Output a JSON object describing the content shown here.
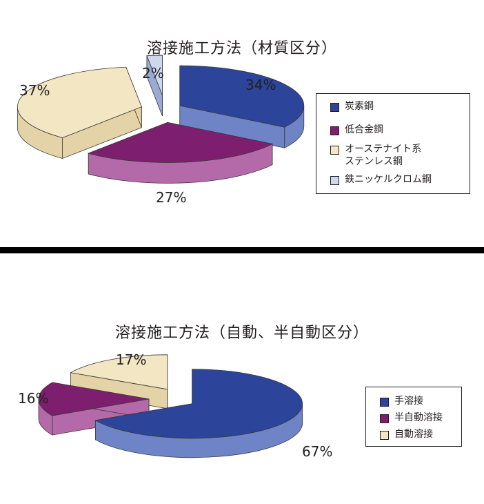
{
  "colors": {
    "blue_top": "#2c449a",
    "blue_side": "#6f84c6",
    "purple_top": "#7d1f6e",
    "purple_side": "#b46aa8",
    "beige_top": "#f2e6c3",
    "beige_side": "#e3d3a6",
    "lightblue_top": "#cdd8ee",
    "lightblue_side": "#9aaad4"
  },
  "chart_data": [
    {
      "type": "pie",
      "title": "溶接施工方法（材質区分）",
      "categories": [
        "炭素鋼",
        "低合金鋼",
        "オーステナイト系\nステンレス鋼",
        "鉄ニッケルクロム鋼"
      ],
      "values": [
        34,
        27,
        37,
        2
      ],
      "labels": [
        "34%",
        "27%",
        "37%",
        "2%"
      ],
      "legend": "right"
    },
    {
      "type": "pie",
      "title": "溶接施工方法（自動、半自動区分）",
      "categories": [
        "手溶接",
        "半自動溶接",
        "自動溶接"
      ],
      "values": [
        67,
        16,
        17
      ],
      "labels": [
        "67%",
        "16%",
        "17%"
      ],
      "legend": "right"
    }
  ]
}
